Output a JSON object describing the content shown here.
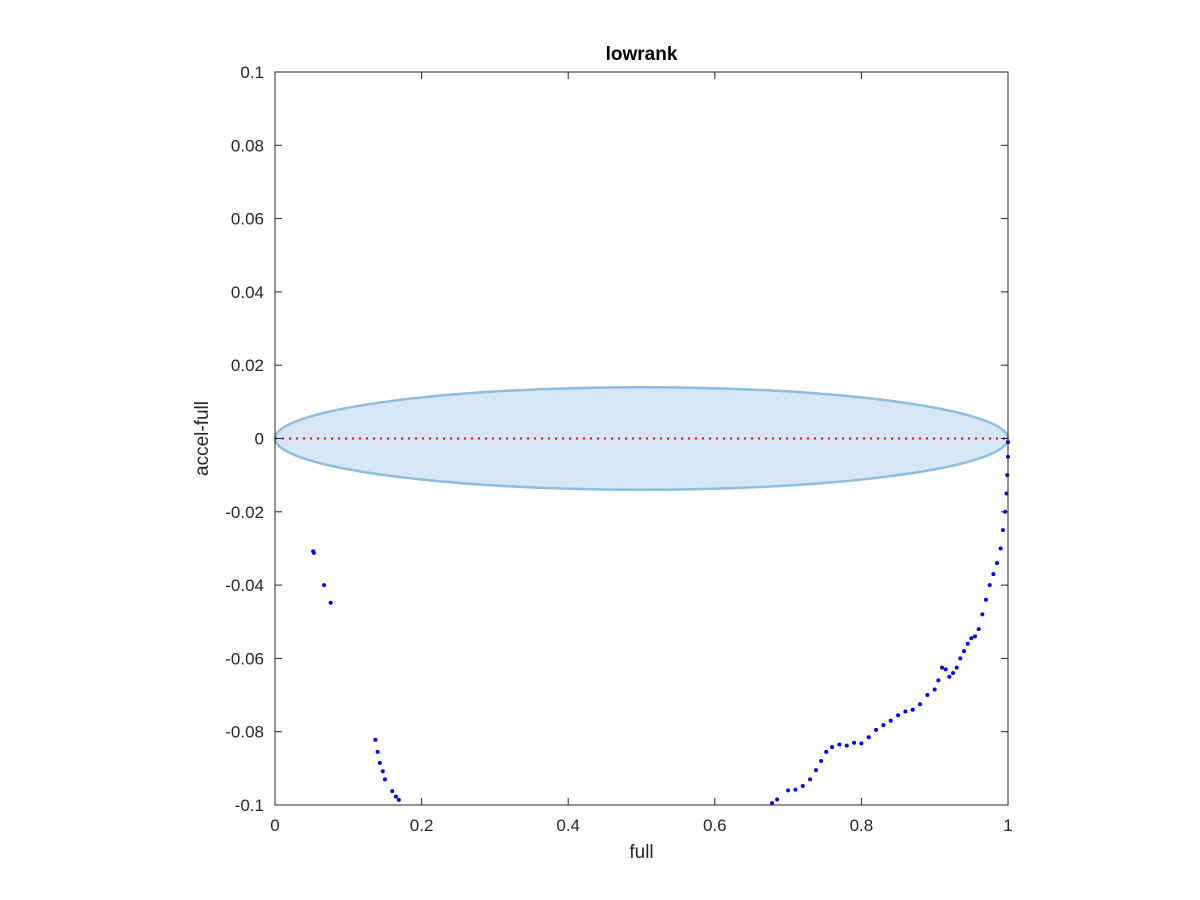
{
  "chart_data": {
    "type": "scatter",
    "title": "lowrank",
    "xlabel": "full",
    "ylabel": "accel-full",
    "xlim": [
      0,
      1
    ],
    "ylim": [
      -0.1,
      0.1
    ],
    "x_ticks": [
      0,
      0.2,
      0.4,
      0.6,
      0.8,
      1
    ],
    "x_tick_labels": [
      "0",
      "0.2",
      "0.4",
      "0.6",
      "0.8",
      "1"
    ],
    "y_ticks": [
      0.1,
      0.08,
      0.06,
      0.04,
      0.02,
      0,
      -0.02,
      -0.04,
      -0.06,
      -0.08,
      -0.1
    ],
    "y_tick_labels": [
      "0.1",
      "0.08",
      "0.06",
      "0.04",
      "0.02",
      "0",
      "-0.02",
      "-0.04",
      "-0.06",
      "-0.08",
      "-0.1"
    ],
    "grid": false,
    "box": true,
    "reference_line": {
      "y": 0,
      "x_range": [
        0,
        1
      ],
      "style": "dotted",
      "color": "#ff0000"
    },
    "tolerance_ellipse": {
      "center": [
        0.5,
        0
      ],
      "semi_axis_x": 0.5,
      "semi_axis_y": 0.014,
      "fill": "#d6e6f4",
      "edge": "#8dbde0"
    },
    "series": [
      {
        "marker_color": "#0000ff",
        "points": [
          [
            0.052,
            -0.0308
          ],
          [
            0.053,
            -0.0312
          ],
          [
            0.067,
            -0.04
          ],
          [
            0.076,
            -0.0448
          ],
          [
            0.137,
            -0.0822
          ],
          [
            0.14,
            -0.0855
          ],
          [
            0.143,
            -0.0885
          ],
          [
            0.147,
            -0.0908
          ],
          [
            0.15,
            -0.093
          ],
          [
            0.16,
            -0.0962
          ],
          [
            0.165,
            -0.0977
          ],
          [
            0.169,
            -0.0986
          ],
          [
            0.678,
            -0.0995
          ],
          [
            0.685,
            -0.0985
          ],
          [
            0.7,
            -0.096
          ],
          [
            0.71,
            -0.0958
          ],
          [
            0.72,
            -0.0948
          ],
          [
            0.73,
            -0.093
          ],
          [
            0.738,
            -0.0905
          ],
          [
            0.745,
            -0.088
          ],
          [
            0.752,
            -0.0855
          ],
          [
            0.76,
            -0.0842
          ],
          [
            0.77,
            -0.0835
          ],
          [
            0.78,
            -0.0838
          ],
          [
            0.79,
            -0.083
          ],
          [
            0.8,
            -0.0832
          ],
          [
            0.81,
            -0.0815
          ],
          [
            0.82,
            -0.0795
          ],
          [
            0.83,
            -0.0782
          ],
          [
            0.84,
            -0.077
          ],
          [
            0.85,
            -0.0755
          ],
          [
            0.86,
            -0.0745
          ],
          [
            0.87,
            -0.074
          ],
          [
            0.88,
            -0.0725
          ],
          [
            0.89,
            -0.07
          ],
          [
            0.9,
            -0.0685
          ],
          [
            0.905,
            -0.066
          ],
          [
            0.91,
            -0.0625
          ],
          [
            0.915,
            -0.063
          ],
          [
            0.92,
            -0.065
          ],
          [
            0.925,
            -0.064
          ],
          [
            0.93,
            -0.0625
          ],
          [
            0.935,
            -0.06
          ],
          [
            0.94,
            -0.058
          ],
          [
            0.945,
            -0.056
          ],
          [
            0.95,
            -0.0545
          ],
          [
            0.955,
            -0.054
          ],
          [
            0.96,
            -0.052
          ],
          [
            0.965,
            -0.048
          ],
          [
            0.97,
            -0.044
          ],
          [
            0.975,
            -0.04
          ],
          [
            0.98,
            -0.037
          ],
          [
            0.985,
            -0.034
          ],
          [
            0.99,
            -0.03
          ],
          [
            0.993,
            -0.025
          ],
          [
            0.996,
            -0.02
          ],
          [
            0.998,
            -0.015
          ],
          [
            0.999,
            -0.01
          ],
          [
            1.0,
            -0.005
          ],
          [
            1.0,
            -0.001
          ]
        ]
      }
    ]
  }
}
